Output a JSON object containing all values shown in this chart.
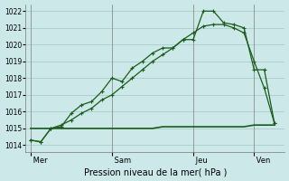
{
  "bg_color": "#cce8e8",
  "grid_color": "#aacccc",
  "line_color": "#1a5c1a",
  "xlabel": "Pression niveau de la mer( hPa )",
  "ylim": [
    1013.6,
    1022.4
  ],
  "yticks": [
    1014,
    1015,
    1016,
    1017,
    1018,
    1019,
    1020,
    1021,
    1022
  ],
  "day_labels": [
    " Mer",
    " Sam",
    " Jeu",
    " Ven"
  ],
  "day_positions": [
    0,
    8,
    16,
    22
  ],
  "xlim": [
    -0.5,
    25
  ],
  "vlines_x": [
    0,
    8,
    16,
    22
  ],
  "s1_x": [
    0,
    1,
    2,
    3,
    4,
    5,
    6,
    7,
    8,
    9,
    10,
    11,
    12,
    13,
    14,
    15,
    16,
    17,
    18,
    19,
    20,
    21,
    22,
    23,
    24
  ],
  "s1_y": [
    1014.3,
    1014.2,
    1015.0,
    1015.1,
    1015.9,
    1016.4,
    1016.6,
    1017.2,
    1018.0,
    1017.8,
    1018.6,
    1019.0,
    1019.5,
    1019.8,
    1019.8,
    1020.3,
    1020.3,
    1022.0,
    1022.0,
    1021.3,
    1021.2,
    1021.0,
    1018.5,
    1018.5,
    1015.3
  ],
  "s2_x": [
    0,
    1,
    2,
    3,
    4,
    5,
    6,
    7,
    8,
    9,
    10,
    11,
    12,
    13,
    14,
    15,
    16,
    17,
    18,
    19,
    20,
    21,
    22,
    23,
    24
  ],
  "s2_y": [
    1014.3,
    1014.2,
    1015.0,
    1015.2,
    1015.5,
    1015.9,
    1016.2,
    1016.7,
    1017.0,
    1017.5,
    1018.0,
    1018.5,
    1019.0,
    1019.4,
    1019.8,
    1020.3,
    1020.7,
    1021.1,
    1021.2,
    1021.2,
    1021.0,
    1020.7,
    1019.0,
    1017.4,
    1015.3
  ],
  "s3_x": [
    0,
    1,
    2,
    3,
    4,
    5,
    6,
    7,
    8,
    9,
    10,
    11,
    12,
    13,
    14,
    15,
    16,
    17,
    18,
    19,
    20,
    21,
    22,
    23,
    24
  ],
  "s3_y": [
    1015.0,
    1015.0,
    1015.0,
    1015.0,
    1015.0,
    1015.0,
    1015.0,
    1015.0,
    1015.0,
    1015.0,
    1015.0,
    1015.0,
    1015.0,
    1015.1,
    1015.1,
    1015.1,
    1015.1,
    1015.1,
    1015.1,
    1015.1,
    1015.1,
    1015.1,
    1015.2,
    1015.2,
    1015.2
  ]
}
